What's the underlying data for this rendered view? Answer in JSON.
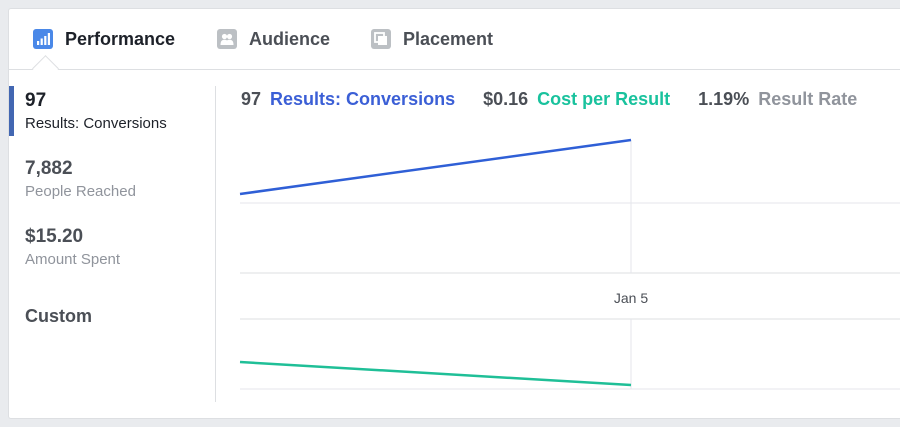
{
  "tabs": [
    {
      "label": "Performance",
      "icon": "bar-chart-icon",
      "active": true
    },
    {
      "label": "Audience",
      "icon": "people-icon",
      "active": false
    },
    {
      "label": "Placement",
      "icon": "placement-icon",
      "active": false
    }
  ],
  "sidebar": {
    "metrics": [
      {
        "value": "97",
        "caption": "Results: Conversions",
        "active": true
      },
      {
        "value": "7,882",
        "caption": "People Reached",
        "active": false
      },
      {
        "value": "$15.20",
        "caption": "Amount Spent",
        "active": false
      }
    ],
    "custom_label": "Custom"
  },
  "legend": [
    {
      "value": "97",
      "name": "Results: Conversions",
      "color": "#3b5fd6"
    },
    {
      "value": "$0.16",
      "name": "Cost per Result",
      "color": "#19c29d"
    },
    {
      "value": "1.19%",
      "name": "Result Rate",
      "color": "#90949c"
    }
  ],
  "chart": {
    "x_label": "Jan 5"
  },
  "colors": {
    "accent": "#4267b2",
    "results_line": "#2f5fd6",
    "cost_line": "#1fbf97",
    "grid": "#dddfe2"
  }
}
